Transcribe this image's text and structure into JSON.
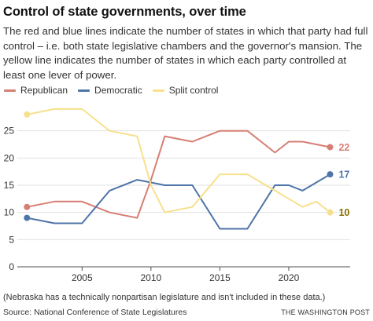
{
  "title": "Control of state governments, over time",
  "subtitle": "The red and blue lines indicate the number of states in which that party had full control – i.e. both state legislative chambers and the governor's mansion. The yellow line indicates the number of states in which each party controlled at least one lever of power.",
  "note": "(Nebraska has a technically nonpartisan legislature and isn't included in these data.)",
  "source": "Source: National Conference of State Legislatures",
  "brand": "THE WASHINGTON POST",
  "colors": {
    "republican": "#d67f74",
    "democratic": "#4e74a8",
    "split": "#f7e08c",
    "grid": "#e1e1e1",
    "axis": "#555555"
  },
  "chart_data": {
    "type": "line",
    "x": [
      2001,
      2003,
      2005,
      2007,
      2009,
      2010,
      2011,
      2013,
      2015,
      2017,
      2019,
      2020,
      2021,
      2022,
      2023
    ],
    "series": [
      {
        "name": "Republican",
        "color": "#d67f74",
        "end_label": "22",
        "values": [
          11,
          12,
          12,
          10,
          9,
          16,
          24,
          23,
          25,
          25,
          21,
          23,
          23,
          22.5,
          22
        ]
      },
      {
        "name": "Democratic",
        "color": "#4e74a8",
        "end_label": "17",
        "values": [
          9,
          8,
          8,
          14,
          16,
          15.5,
          15,
          15,
          7,
          7,
          15,
          15,
          14,
          15.5,
          17
        ]
      },
      {
        "name": "Split control",
        "color": "#f7e08c",
        "end_label": "10",
        "values": [
          28,
          29,
          29,
          25,
          24,
          15,
          10,
          11,
          17,
          17,
          14,
          12.5,
          11,
          12,
          10
        ]
      }
    ],
    "xlim": [
      2000.3,
      2024
    ],
    "ylim": [
      0,
      30
    ],
    "yticks": [
      0,
      5,
      10,
      15,
      20,
      25
    ],
    "xticks": [
      2005,
      2010,
      2015,
      2020
    ],
    "legend_position": "top-left",
    "grid": true
  }
}
